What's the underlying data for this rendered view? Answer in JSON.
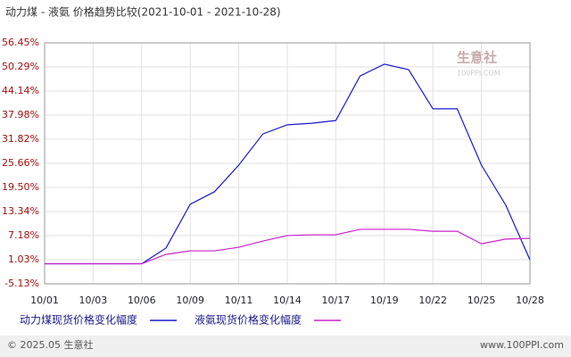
{
  "chart_data": {
    "type": "line",
    "title": "动力煤 - 液氨 价格趋势比较(2021-10-01 - 2021-10-28)",
    "categories": [
      "10/01",
      null,
      "10/03",
      null,
      "10/06",
      null,
      "10/09",
      null,
      "10/11",
      null,
      "10/14",
      null,
      "10/17",
      null,
      "10/19",
      null,
      "10/22",
      null,
      "10/25",
      null,
      "10/28"
    ],
    "series": [
      {
        "name": "动力煤现货价格变化幅度",
        "color": "#1a1acc",
        "values": [
          0,
          0,
          0,
          0,
          0,
          4.0,
          15.2,
          18.4,
          25.2,
          33.2,
          35.5,
          35.9,
          36.6,
          48.0,
          51.0,
          49.6,
          39.6,
          39.6,
          25.2,
          15.0,
          1.0
        ]
      },
      {
        "name": "液氨现货价格变化幅度",
        "color": "#cc22cc",
        "values": [
          0,
          0,
          0,
          0,
          0,
          2.4,
          3.3,
          3.3,
          4.2,
          5.8,
          7.2,
          7.4,
          7.4,
          8.8,
          8.8,
          8.8,
          8.3,
          8.3,
          5.1,
          6.3,
          6.5
        ]
      }
    ],
    "ylim": [
      -5.13,
      56.45
    ],
    "yticks": [
      {
        "value": -5.13,
        "label": "-5.13%"
      },
      {
        "value": 1.03,
        "label": "1.03%"
      },
      {
        "value": 7.18,
        "label": "7.18%"
      },
      {
        "value": 13.34,
        "label": "13.34%"
      },
      {
        "value": 19.5,
        "label": "19.50%"
      },
      {
        "value": 25.66,
        "label": "25.66%"
      },
      {
        "value": 31.82,
        "label": "31.82%"
      },
      {
        "value": 37.98,
        "label": "37.98%"
      },
      {
        "value": 44.14,
        "label": "44.14%"
      },
      {
        "value": 50.29,
        "label": "50.29%"
      },
      {
        "value": 56.45,
        "label": "56.45%"
      }
    ],
    "grid": true,
    "watermark": "生意社",
    "watermark_sub": "100PPI.COM",
    "footer_left": "© 2025.05 生意社",
    "footer_right": "www.100PPI.com"
  }
}
